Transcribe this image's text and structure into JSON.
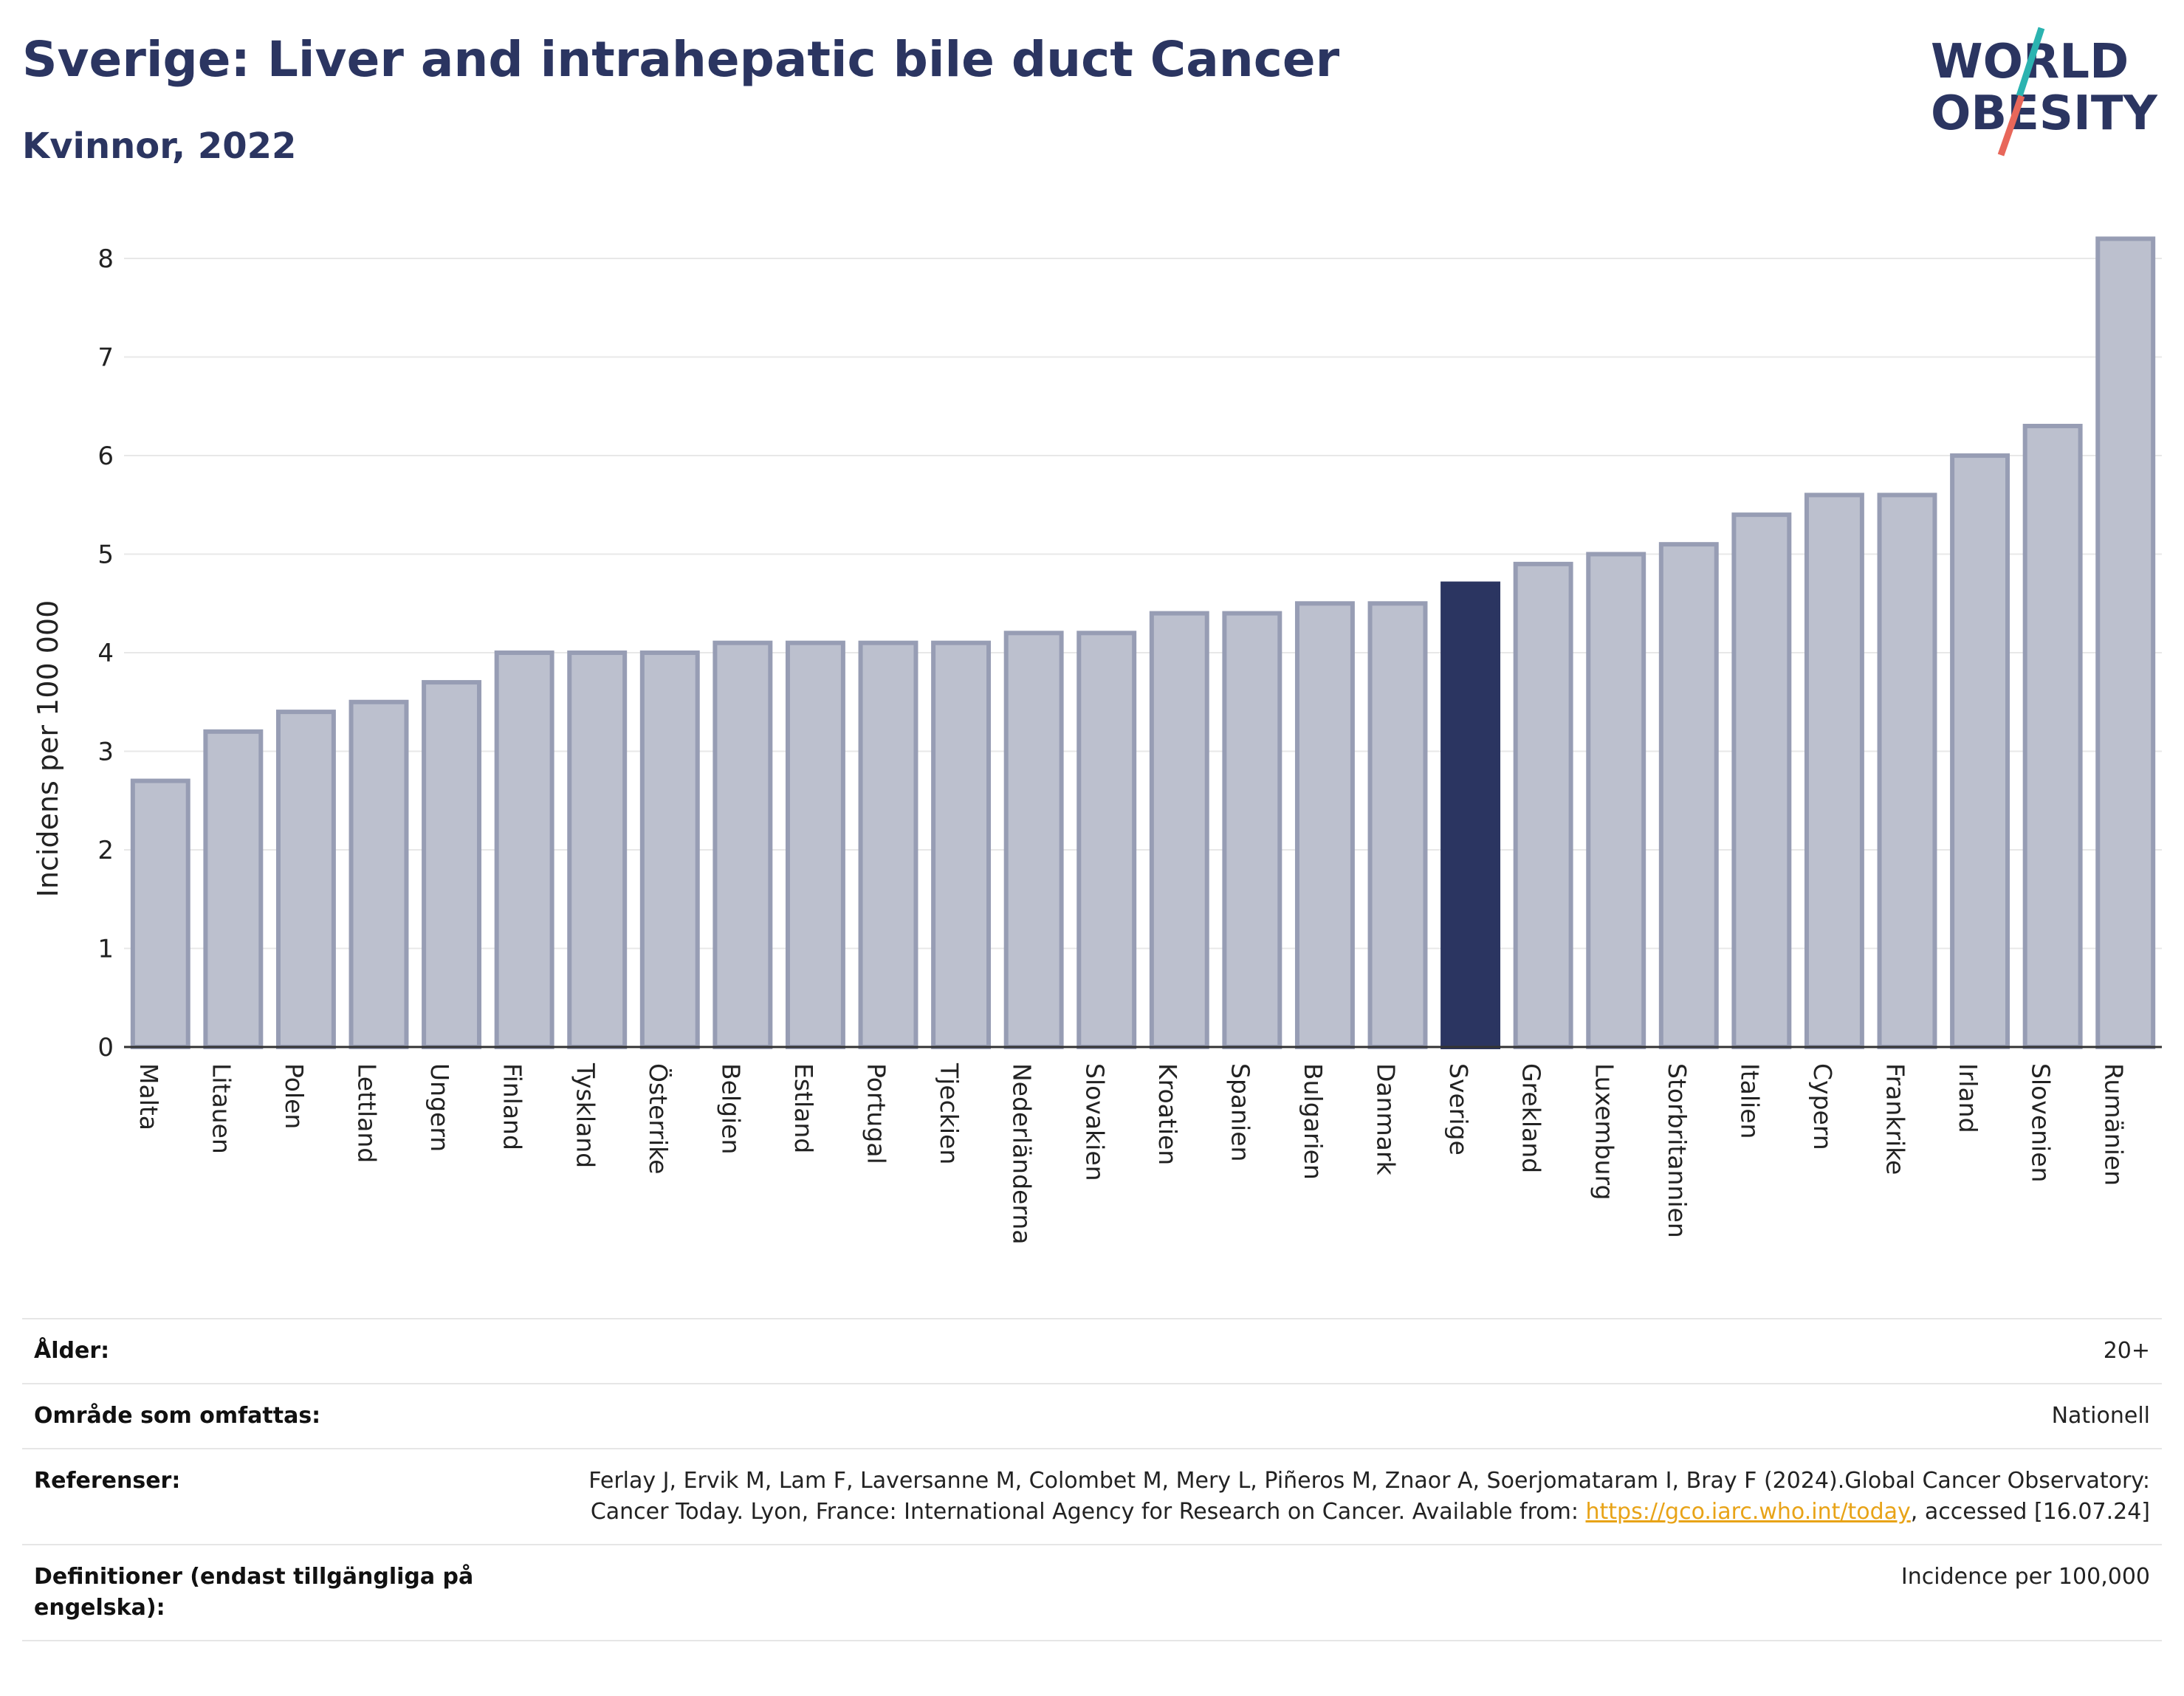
{
  "header": {
    "title": "Sverige: Liver and intrahepatic bile duct Cancer",
    "subtitle": "Kvinnor, 2022"
  },
  "logo": {
    "line1": "WORLD",
    "line2": "OBESITY",
    "text_color": "#2b3561",
    "slash_colors": [
      "#2bb3b0",
      "#e8675a"
    ]
  },
  "colors": {
    "bar_default": "#bcc0ce",
    "bar_default_border": "#979db4",
    "bar_highlight": "#2b3561",
    "grid": "#e8e8e8",
    "axis": "#333333"
  },
  "chart_data": {
    "type": "bar",
    "ylabel": "Incidens per 100 000",
    "xlabel": "",
    "ylim": [
      0,
      8.3
    ],
    "yticks": [
      0,
      1,
      2,
      3,
      4,
      5,
      6,
      7,
      8
    ],
    "grid": true,
    "highlight": "Sverige",
    "categories": [
      "Malta",
      "Litauen",
      "Polen",
      "Lettland",
      "Ungern",
      "Finland",
      "Tyskland",
      "Österrike",
      "Belgien",
      "Estland",
      "Portugal",
      "Tjeckien",
      "Nederländerna",
      "Slovakien",
      "Kroatien",
      "Spanien",
      "Bulgarien",
      "Danmark",
      "Sverige",
      "Grekland",
      "Luxemburg",
      "Storbritannien",
      "Italien",
      "Cypern",
      "Frankrike",
      "Irland",
      "Slovenien",
      "Rumänien"
    ],
    "values": [
      2.7,
      3.2,
      3.4,
      3.5,
      3.7,
      4.0,
      4.0,
      4.0,
      4.1,
      4.1,
      4.1,
      4.1,
      4.2,
      4.2,
      4.4,
      4.4,
      4.5,
      4.5,
      4.7,
      4.9,
      5.0,
      5.1,
      5.4,
      5.6,
      5.6,
      6.0,
      6.3,
      8.2
    ]
  },
  "meta": {
    "age_label": "Ålder:",
    "age_value": "20+",
    "area_label": "Område som omfattas:",
    "area_value": "Nationell",
    "refs_label": "Referenser:",
    "refs_text_1": "Ferlay J, Ervik M, Lam F, Laversanne M, Colombet M, Mery L, Piñeros M, Znaor A, Soerjomataram I, Bray F (2024).Global Cancer Observatory: Cancer Today. Lyon, France: International Agency for Research on Cancer. Available from: ",
    "refs_link": "https://gco.iarc.who.int/today",
    "refs_text_2": ", accessed [16.07.24]",
    "defs_label": "Definitioner (endast tillgängliga på engelska):",
    "defs_value": "Incidence per 100,000"
  }
}
